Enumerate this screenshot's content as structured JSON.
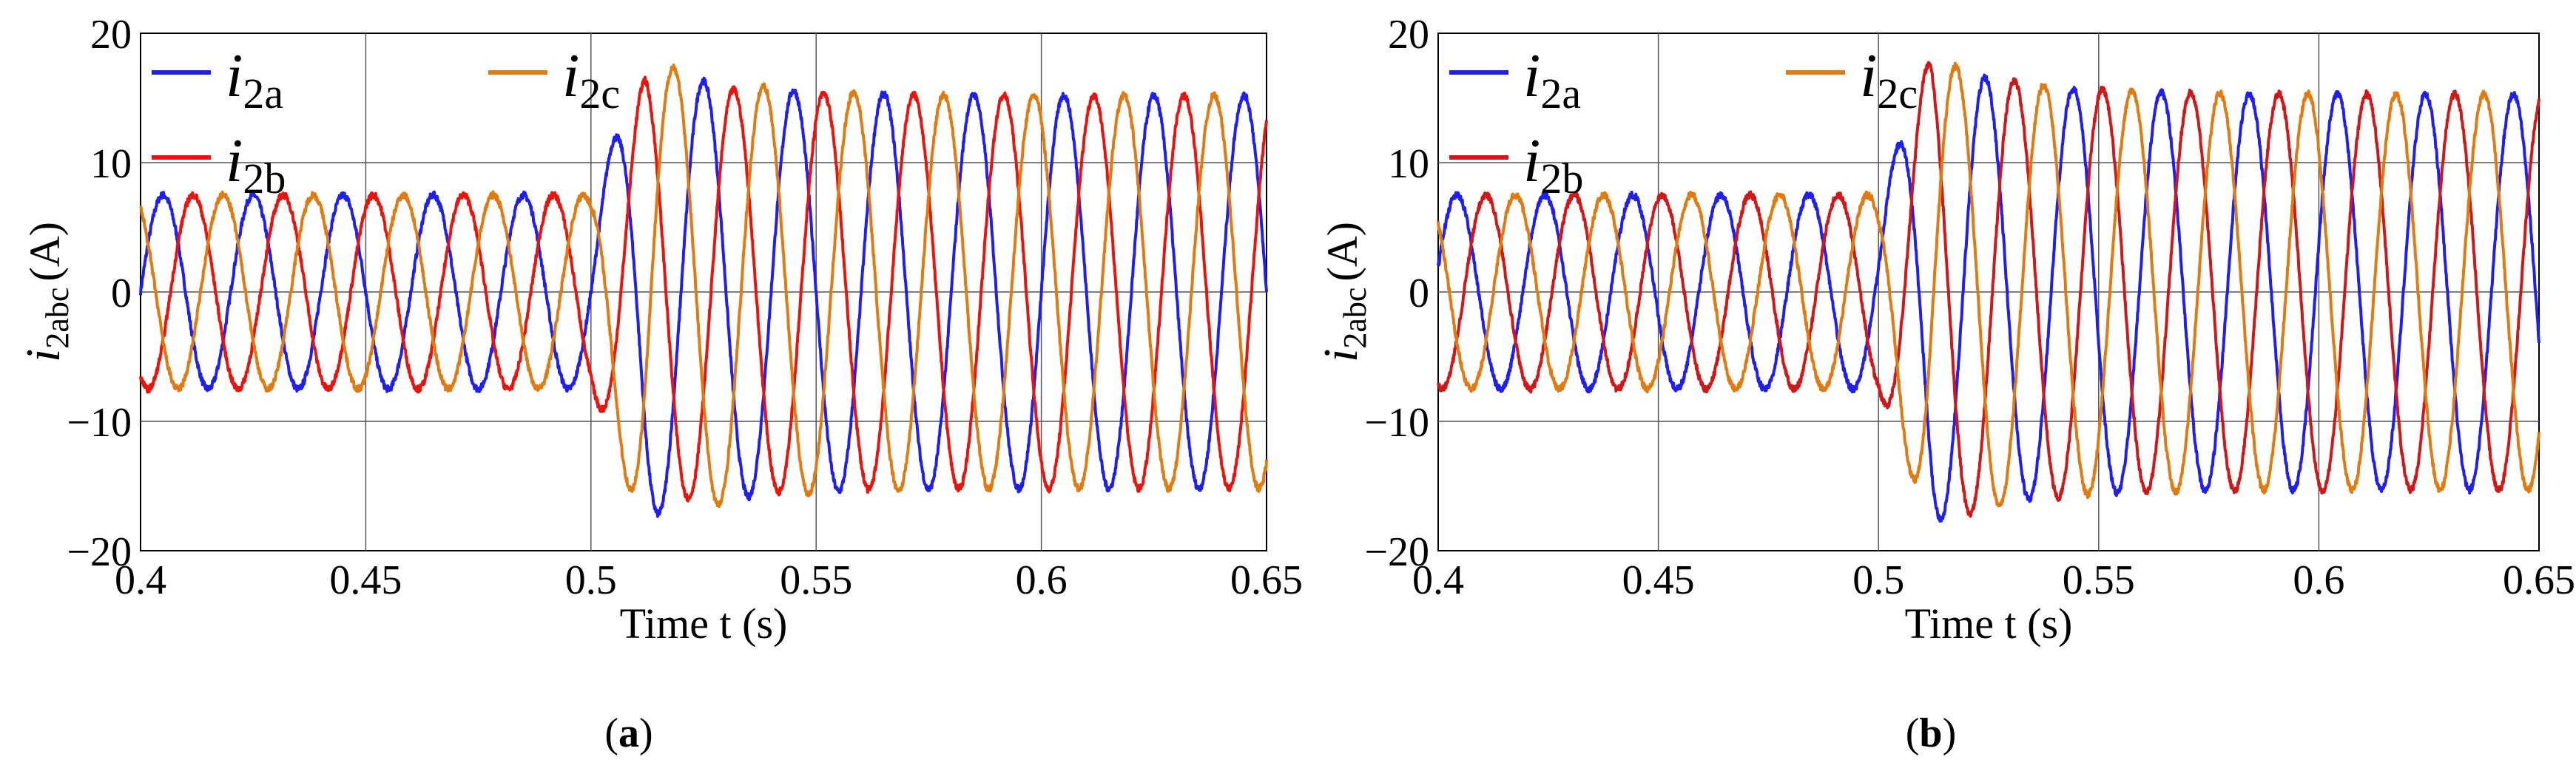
{
  "chart_data": [
    {
      "type": "line",
      "panel_label": "a",
      "xlabel": "Time t (s)",
      "ylabel_symbol": "i",
      "ylabel_subscript": "2abc",
      "ylabel_unit": "(A)",
      "xlim": [
        0.4,
        0.65
      ],
      "ylim": [
        -20,
        20
      ],
      "xticks": [
        "0.4",
        "0.45",
        "0.5",
        "0.55",
        "0.6",
        "0.65"
      ],
      "yticks": [
        "20",
        "10",
        "0",
        "−10",
        "−20"
      ],
      "grid": true,
      "legend_placement": "top-left",
      "series_description": "three-phase sinusoids, 50 Hz; amplitude ~7.5 A before t = 0.5 s, transient peak ~18 A, settling to ~15 A after",
      "series": [
        {
          "name_symbol": "i",
          "name_subscript": "2a",
          "color": "#1f1ff0",
          "phase_deg": 0,
          "amplitude_before": 7.5,
          "peak_transient": 17.5,
          "amplitude_after": 15.2
        },
        {
          "name_symbol": "i",
          "name_subscript": "2b",
          "color": "#e8140e",
          "phase_deg": -120,
          "amplitude_before": 7.5,
          "peak_transient": 16.5,
          "amplitude_after": 15.2
        },
        {
          "name_symbol": "i",
          "name_subscript": "2c",
          "color": "#e07b12",
          "phase_deg": 120,
          "amplitude_before": 7.5,
          "peak_transient": 18.3,
          "amplitude_after": 15.2
        }
      ]
    },
    {
      "type": "line",
      "panel_label": "b",
      "xlabel": "Time t (s)",
      "ylabel_symbol": "i",
      "ylabel_subscript": "2abc",
      "ylabel_unit": "(A)",
      "xlim": [
        0.4,
        0.65
      ],
      "ylim": [
        -20,
        20
      ],
      "xticks": [
        "0.4",
        "0.45",
        "0.5",
        "0.55",
        "0.6",
        "0.65"
      ],
      "yticks": [
        "20",
        "10",
        "0",
        "−10",
        "−20"
      ],
      "grid": true,
      "legend_placement": "top-left",
      "series_description": "three-phase sinusoids, 50 Hz; amplitude ~7.5 A before t = 0.5 s, transient peak ~18 A, settling to ~15 A after",
      "series": [
        {
          "name_symbol": "i",
          "name_subscript": "2a",
          "color": "#1f1ff0",
          "phase_deg": 0,
          "amplitude_before": 7.5,
          "peak_transient": 17.8,
          "amplitude_after": 15.3
        },
        {
          "name_symbol": "i",
          "name_subscript": "2b",
          "color": "#d01818",
          "phase_deg": -120,
          "amplitude_before": 7.5,
          "peak_transient": 18.3,
          "amplitude_after": 15.3
        },
        {
          "name_symbol": "i",
          "name_subscript": "2c",
          "color": "#e07b12",
          "phase_deg": 120,
          "amplitude_before": 7.5,
          "peak_transient": 18.2,
          "amplitude_after": 15.3
        }
      ]
    }
  ]
}
